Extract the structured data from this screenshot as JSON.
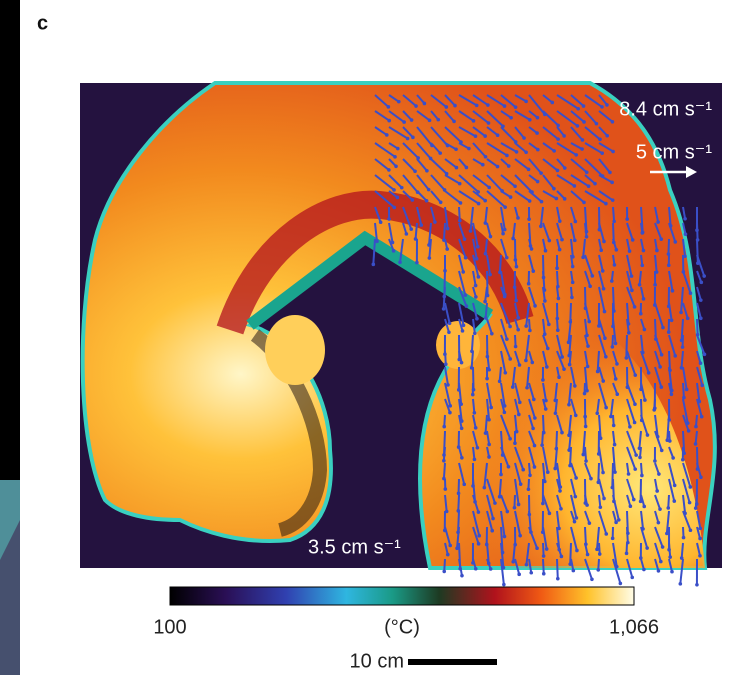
{
  "panel_label": "c",
  "annotations": [
    "8.4 cm s⁻¹",
    "5 cm s⁻¹",
    "3.5 cm s⁻¹"
  ],
  "colorbar": {
    "unit": "(°C)",
    "ticks": [
      100,
      {
        "value": 1066,
        "label": "1,066"
      }
    ]
  },
  "scale_bar": "10 cm"
}
